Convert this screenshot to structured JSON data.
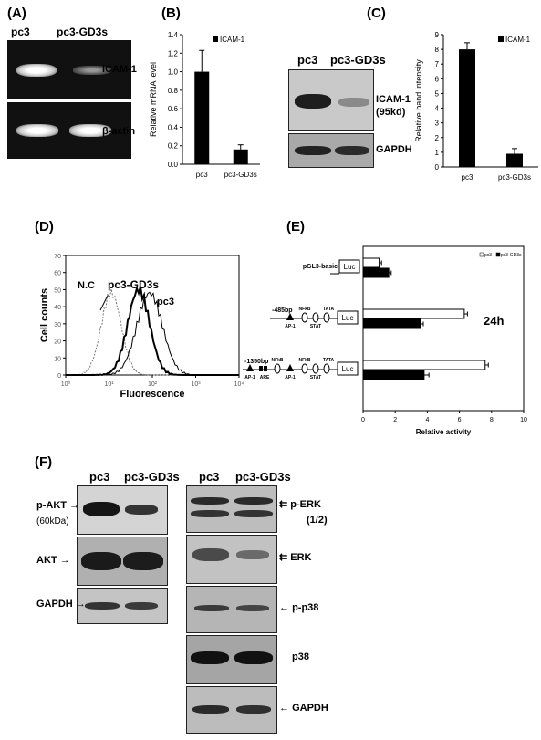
{
  "panels": {
    "A": {
      "letter": "(A)",
      "lanes": [
        "pc3",
        "pc3-GD3s"
      ],
      "rows": [
        "ICAM-1",
        "β-actin"
      ]
    },
    "B": {
      "letter": "(B)"
    },
    "C": {
      "letter": "(C)",
      "lanes": [
        "pc3",
        "pc3-GD3s"
      ],
      "rows": [
        "ICAM-1\n(95kd)",
        "GAPDH"
      ]
    },
    "D": {
      "letter": "(D)",
      "curve_labels": [
        "N.C",
        "pc3-GD3s",
        "pc3"
      ]
    },
    "E": {
      "letter": "(E)",
      "time_label": "24h",
      "constructs": [
        "pGL3-basic",
        "-485bp",
        "-1350bp"
      ],
      "elements": {
        "luc": "Luc",
        "ap1": "AP-1",
        "nfkb": "NFkB",
        "stat": "STAT",
        "tata": "TATA",
        "are": "ARE"
      }
    },
    "F": {
      "letter": "(F)",
      "left_lanes": [
        "pc3",
        "pc3-GD3s"
      ],
      "right_lanes": [
        "pc3",
        "pc3-GD3s"
      ],
      "left_rows": [
        "p-AKT",
        "AKT",
        "GAPDH"
      ],
      "left_sub": "(60kDa)",
      "right_rows": [
        "p-ERK",
        "ERK",
        "p-p38",
        "p38",
        "GAPDH"
      ],
      "right_sub": "(1/2)"
    }
  },
  "chart_data": [
    {
      "id": "B",
      "type": "bar",
      "categories": [
        "pc3",
        "pc3-GD3s"
      ],
      "series": [
        {
          "name": "ICAM-1",
          "values": [
            1.0,
            0.16
          ],
          "errors": [
            0.23,
            0.05
          ]
        }
      ],
      "ylabel": "Relative mRNA level",
      "ylim": [
        0,
        1.4
      ],
      "yticks": [
        "0.0",
        "0.2",
        "0.4",
        "0.6",
        "0.8",
        "1.0",
        "1.2",
        "1.4"
      ],
      "legend": "top-right"
    },
    {
      "id": "C",
      "type": "bar",
      "categories": [
        "pc3",
        "pc3-GD3s"
      ],
      "series": [
        {
          "name": "ICAM-1",
          "values": [
            8.0,
            0.9
          ],
          "errors": [
            0.45,
            0.35
          ]
        }
      ],
      "ylabel": "Relative band intensity",
      "ylim": [
        0,
        9
      ],
      "yticks": [
        "0",
        "1",
        "2",
        "3",
        "4",
        "5",
        "6",
        "7",
        "8",
        "9"
      ],
      "legend": "top-right"
    },
    {
      "id": "D",
      "type": "line",
      "xlabel": "Fluorescence",
      "ylabel": "Cell counts",
      "ylim": [
        0,
        70
      ],
      "yticks": [
        "0",
        "10",
        "20",
        "30",
        "40",
        "50",
        "60",
        "70"
      ],
      "xticks": [
        "10⁰",
        "10¹",
        "10²",
        "10³",
        "10⁴"
      ]
    },
    {
      "id": "E",
      "type": "bar",
      "orientation": "horizontal",
      "categories": [
        "pGL3-basic",
        "-485bp",
        "-1350bp"
      ],
      "series": [
        {
          "name": "pc3",
          "values": [
            1.0,
            6.3,
            7.6
          ],
          "errors": [
            0.15,
            0.2,
            0.2
          ]
        },
        {
          "name": "pc3-GD3s",
          "values": [
            1.6,
            3.6,
            3.8
          ],
          "errors": [
            0.15,
            0.15,
            0.3
          ]
        }
      ],
      "xlabel": "Relative activity",
      "xlim": [
        0,
        10
      ],
      "xticks": [
        "0",
        "2",
        "4",
        "6",
        "8",
        "10"
      ],
      "legend": "top-right"
    }
  ]
}
